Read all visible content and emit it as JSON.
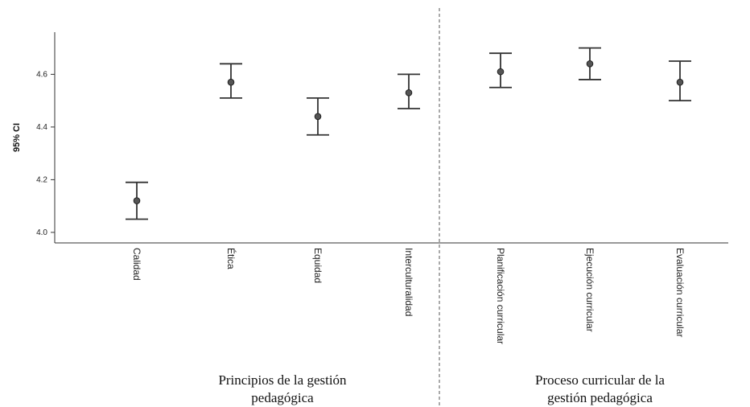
{
  "chart_data": {
    "type": "errorbar",
    "ylabel": "95% CI",
    "ylim": [
      3.96,
      4.76
    ],
    "yticks": [
      4.0,
      4.2,
      4.4,
      4.6
    ],
    "ytick_labels": [
      "4.0",
      "4.2",
      "4.4",
      "4.6"
    ],
    "categories": [
      "Calidad",
      "Ética",
      "Equidad",
      "Interculturalidad",
      "Planificación curricular",
      "Ejecución curricular",
      "Evaluación curricular"
    ],
    "mean": [
      4.12,
      4.57,
      4.44,
      4.53,
      4.61,
      4.64,
      4.57
    ],
    "lower": [
      4.05,
      4.51,
      4.37,
      4.47,
      4.55,
      4.58,
      4.5
    ],
    "upper": [
      4.19,
      4.64,
      4.51,
      4.6,
      4.68,
      4.7,
      4.65
    ],
    "groups": [
      {
        "label_line1": "Principios de la gestión",
        "label_line2": "pedagógica",
        "start": 0,
        "end": 3
      },
      {
        "label_line1": "Proceso curricular de la",
        "label_line2": "gestión pedagógica",
        "start": 4,
        "end": 6
      }
    ],
    "grid": false
  }
}
